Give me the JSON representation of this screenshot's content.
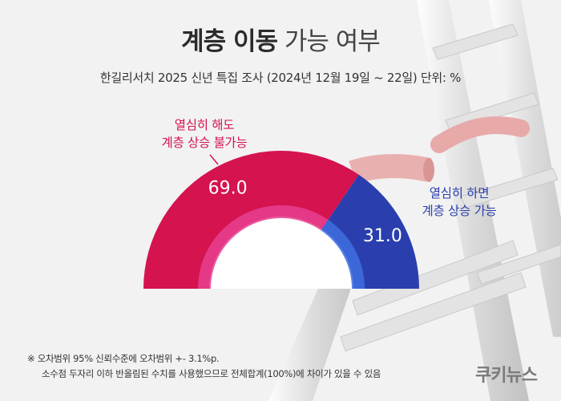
{
  "title": {
    "bold": "계층 이동",
    "light": "가능 여부"
  },
  "subtitle": "한길리서치 2025 신년 특집 조사 (2024년 12월 19일 ~ 22일) 단위: %",
  "chart_data": {
    "type": "pie",
    "variant": "semi-donut",
    "title": "계층 이동 가능 여부",
    "slices": [
      {
        "label_line1": "열심히 해도",
        "label_line2": "계층 상승 불가능",
        "value": 69.0,
        "value_text": "69.0",
        "color": "#d4134f"
      },
      {
        "label_line1": "열심히 하면",
        "label_line2": "계층 상승 가능",
        "value": 31.0,
        "value_text": "31.0",
        "color": "#2a3fad"
      }
    ]
  },
  "colors": {
    "negative_text": "#d4134f",
    "positive_text": "#2a3fad"
  },
  "notes": {
    "line1": "※ 오차범위 95% 신뢰수준에 오차범위 +- 3.1%p.",
    "line2": "소수점 두자리 이하 반올림된 수치를 사용했으므로 전체합계(100%)에 차이가 있을 수 있음"
  },
  "brand": "쿠키뉴스"
}
